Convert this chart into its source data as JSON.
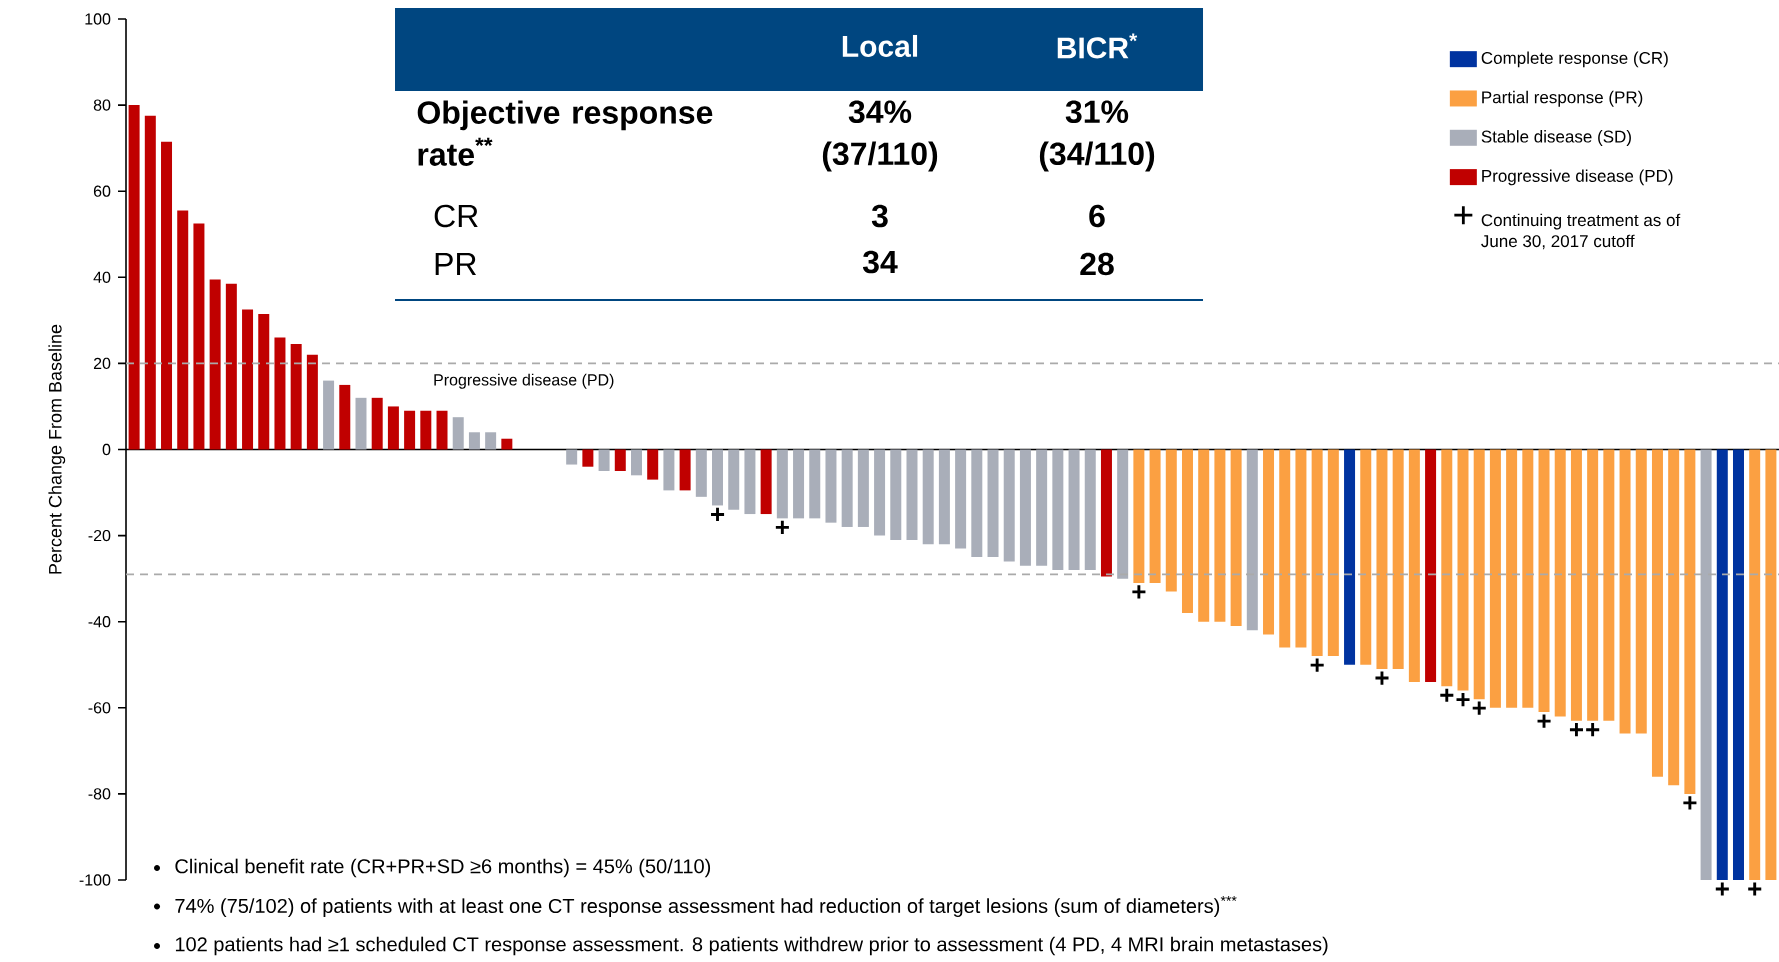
{
  "chart_data": {
    "type": "bar",
    "ylabel": "Percent Change From Baseline",
    "categories": [
      null,
      null,
      null,
      null,
      null,
      null,
      null,
      null,
      null,
      null,
      null,
      null,
      null,
      null,
      null,
      null,
      null,
      null,
      null,
      null,
      null,
      null,
      null,
      null,
      null,
      null,
      null,
      null,
      null,
      null,
      null,
      null,
      null,
      null,
      null,
      null,
      null,
      null,
      null,
      null,
      null,
      null,
      null,
      null,
      null,
      null,
      null,
      null,
      null,
      null,
      null,
      null,
      null,
      null,
      null,
      null,
      null,
      null,
      null,
      null,
      null,
      null,
      null,
      null,
      null,
      null,
      null,
      null,
      null,
      null,
      null,
      null,
      null,
      null,
      null,
      null,
      null,
      null,
      null,
      null,
      null,
      null,
      null,
      null,
      null,
      null,
      null,
      null,
      null,
      null,
      null,
      null,
      null,
      null,
      null,
      null,
      null,
      null,
      null,
      null,
      null,
      null
    ],
    "series": [
      {
        "name": "Complete response (CR)",
        "color": "#0033a0",
        "values": [
          null,
          null,
          null,
          null,
          null,
          null,
          null,
          null,
          null,
          null,
          null,
          null,
          null,
          null,
          null,
          null,
          null,
          null,
          null,
          null,
          null,
          null,
          null,
          null,
          null,
          null,
          null,
          null,
          null,
          null,
          null,
          null,
          null,
          null,
          null,
          null,
          null,
          null,
          null,
          null,
          null,
          null,
          null,
          null,
          null,
          null,
          null,
          null,
          null,
          null,
          null,
          null,
          null,
          null,
          null,
          null,
          null,
          null,
          null,
          null,
          null,
          null,
          null,
          null,
          null,
          null,
          null,
          null,
          null,
          null,
          null,
          null,
          null,
          null,
          null,
          -50,
          null,
          null,
          null,
          null,
          null,
          null,
          null,
          null,
          null,
          null,
          null,
          null,
          null,
          null,
          null,
          null,
          null,
          null,
          null,
          null,
          null,
          null,
          -100,
          -100,
          null,
          null
        ],
        "value_labels": [
          null,
          null,
          null,
          null,
          null,
          null,
          null,
          null,
          null,
          null,
          null,
          null,
          null,
          null,
          null,
          null,
          null,
          null,
          null,
          null,
          null,
          null,
          null,
          null,
          null,
          null,
          null,
          null,
          null,
          null,
          null,
          null,
          null,
          null,
          null,
          null,
          null,
          null,
          null,
          null,
          null,
          null,
          null,
          null,
          null,
          null,
          null,
          null,
          null,
          null,
          null,
          null,
          null,
          null,
          null,
          null,
          null,
          null,
          null,
          null,
          null,
          null,
          null,
          null,
          null,
          null,
          null,
          null,
          null,
          null,
          null,
          null,
          null,
          null,
          null,
          null,
          null,
          null,
          null,
          null,
          null,
          null,
          null,
          null,
          null,
          null,
          null,
          null,
          null,
          null,
          null,
          null,
          null,
          null,
          null,
          null,
          null,
          null,
          "+",
          null,
          null,
          null
        ]
      },
      {
        "name": "Partial response (PR)",
        "color": "#fba042",
        "values": [
          null,
          null,
          null,
          null,
          null,
          null,
          null,
          null,
          null,
          null,
          null,
          null,
          null,
          null,
          null,
          null,
          null,
          null,
          null,
          null,
          null,
          null,
          null,
          null,
          null,
          null,
          null,
          null,
          null,
          null,
          null,
          null,
          null,
          null,
          null,
          null,
          null,
          null,
          null,
          null,
          null,
          null,
          null,
          null,
          null,
          null,
          null,
          null,
          null,
          null,
          null,
          null,
          null,
          null,
          null,
          null,
          null,
          null,
          null,
          null,
          null,
          null,
          -31,
          -31,
          -33,
          -38,
          -40,
          -40,
          -41,
          null,
          -43,
          -46,
          -46,
          -48,
          -48,
          null,
          -50,
          -51,
          -51,
          -54,
          null,
          -55,
          -56,
          -58,
          -60,
          -60,
          -60,
          -61,
          -62,
          -63,
          -63,
          -63,
          -66,
          -66,
          -76,
          -78,
          -80,
          null,
          null,
          null,
          -100,
          -100
        ],
        "value_labels": [
          null,
          null,
          null,
          null,
          null,
          null,
          null,
          null,
          null,
          null,
          null,
          null,
          null,
          null,
          null,
          null,
          null,
          null,
          null,
          null,
          null,
          null,
          null,
          null,
          null,
          null,
          null,
          null,
          null,
          null,
          null,
          null,
          null,
          null,
          null,
          null,
          null,
          null,
          null,
          null,
          null,
          null,
          null,
          null,
          null,
          null,
          null,
          null,
          null,
          null,
          null,
          null,
          null,
          null,
          null,
          null,
          null,
          null,
          null,
          null,
          null,
          null,
          "+",
          null,
          null,
          null,
          null,
          null,
          null,
          null,
          null,
          null,
          null,
          "+",
          null,
          null,
          null,
          "+",
          null,
          null,
          null,
          "+",
          "+",
          "+",
          null,
          null,
          null,
          "+",
          null,
          "+",
          "+",
          null,
          null,
          null,
          null,
          null,
          "+",
          null,
          null,
          null,
          "+",
          null
        ]
      },
      {
        "name": "Stable disease (SD)",
        "color": "#a9aeb9",
        "values": [
          null,
          null,
          null,
          null,
          null,
          null,
          null,
          null,
          null,
          null,
          null,
          null,
          16,
          null,
          12,
          null,
          null,
          null,
          null,
          null,
          7.5,
          4,
          4,
          null,
          0,
          0,
          0,
          -3.5,
          null,
          -5,
          null,
          -6,
          null,
          -9.5,
          null,
          -11,
          -13,
          -14,
          -15,
          null,
          -16,
          -16,
          -16,
          -17,
          -18,
          -18,
          -20,
          -21,
          -21,
          -22,
          -22,
          -23,
          -25,
          -25,
          -26,
          -27,
          -27,
          -28,
          -28,
          -28,
          null,
          -30,
          null,
          null,
          null,
          null,
          null,
          null,
          null,
          -42,
          null,
          null,
          null,
          null,
          null,
          null,
          null,
          null,
          null,
          null,
          null,
          null,
          null,
          null,
          null,
          null,
          null,
          null,
          null,
          null,
          null,
          null,
          null,
          null,
          null,
          null,
          null,
          -100,
          null,
          null,
          null,
          null
        ],
        "value_labels": [
          null,
          null,
          null,
          null,
          null,
          null,
          null,
          null,
          null,
          null,
          null,
          null,
          null,
          null,
          null,
          null,
          null,
          null,
          null,
          null,
          null,
          null,
          null,
          null,
          null,
          null,
          null,
          null,
          null,
          null,
          null,
          null,
          null,
          null,
          null,
          null,
          "+",
          null,
          null,
          null,
          "+",
          null,
          null,
          null,
          null,
          null,
          null,
          null,
          null,
          null,
          null,
          null,
          null,
          null,
          null,
          null,
          null,
          null,
          null,
          null,
          null,
          null,
          null,
          null,
          null,
          null,
          null,
          null,
          null,
          null,
          null,
          null,
          null,
          null,
          null,
          null,
          null,
          null,
          null,
          null,
          null,
          null,
          null,
          null,
          null,
          null,
          null,
          null,
          null,
          null,
          null,
          null,
          null,
          null,
          null,
          null,
          null,
          null,
          null,
          null,
          null,
          null
        ]
      },
      {
        "name": "Progressive disease (PD)",
        "color": "#c00000",
        "values": [
          80,
          77.5,
          71.5,
          55.5,
          52.5,
          39.5,
          38.5,
          32.5,
          31.5,
          26,
          24.5,
          22,
          null,
          15,
          null,
          12,
          10,
          9,
          9,
          9,
          null,
          null,
          null,
          2.5,
          null,
          null,
          null,
          null,
          -4,
          null,
          -5,
          null,
          -7,
          null,
          -9.5,
          null,
          null,
          null,
          null,
          -15,
          null,
          null,
          null,
          null,
          null,
          null,
          null,
          null,
          null,
          null,
          null,
          null,
          null,
          null,
          null,
          null,
          null,
          null,
          null,
          null,
          -29.5,
          null,
          null,
          null,
          null,
          null,
          null,
          null,
          null,
          null,
          null,
          null,
          null,
          null,
          null,
          null,
          null,
          null,
          null,
          null,
          -54,
          null,
          null,
          null,
          null,
          null,
          null,
          null,
          null,
          null,
          null,
          null,
          null,
          null,
          null,
          null,
          null,
          null,
          null,
          null,
          null,
          null
        ]
      }
    ],
    "ylim": [
      -100,
      100
    ],
    "yticks": [
      -100,
      -80,
      -60,
      -40,
      -20,
      0,
      20,
      40,
      60,
      80,
      100
    ],
    "ref_lines": [
      {
        "axis": "y",
        "value": 20,
        "label": "Progressive disease (PD)",
        "color": "#aaaaaa",
        "line_style": "dashed"
      },
      {
        "axis": "y",
        "value": -29,
        "color": "#aaaaaa",
        "line_style": "dashed"
      }
    ],
    "legend": "top right",
    "annotations": [
      "Local",
      "BICR$^{*}$",
      "Objective response rate$^{**}$",
      "34% (37/110)",
      "31% (34/110)",
      "CR",
      "3",
      "6",
      "PR",
      "34",
      "28",
      "Continuing treatment as of June 30, 2017 cutoff",
      "Clinical benefit rate (CR+PR+SD ≥6 months) = 45% (50/110)",
      "74% (75/102) of patients with at least one CT response assessment had reduction of target lesions (sum of diameters)$^{***}$",
      "102 patients had ≥1 scheduled CT response assessment. 8 patients withdrew prior to assessment (4 PD, 4 MRI brain metastases)"
    ]
  }
}
